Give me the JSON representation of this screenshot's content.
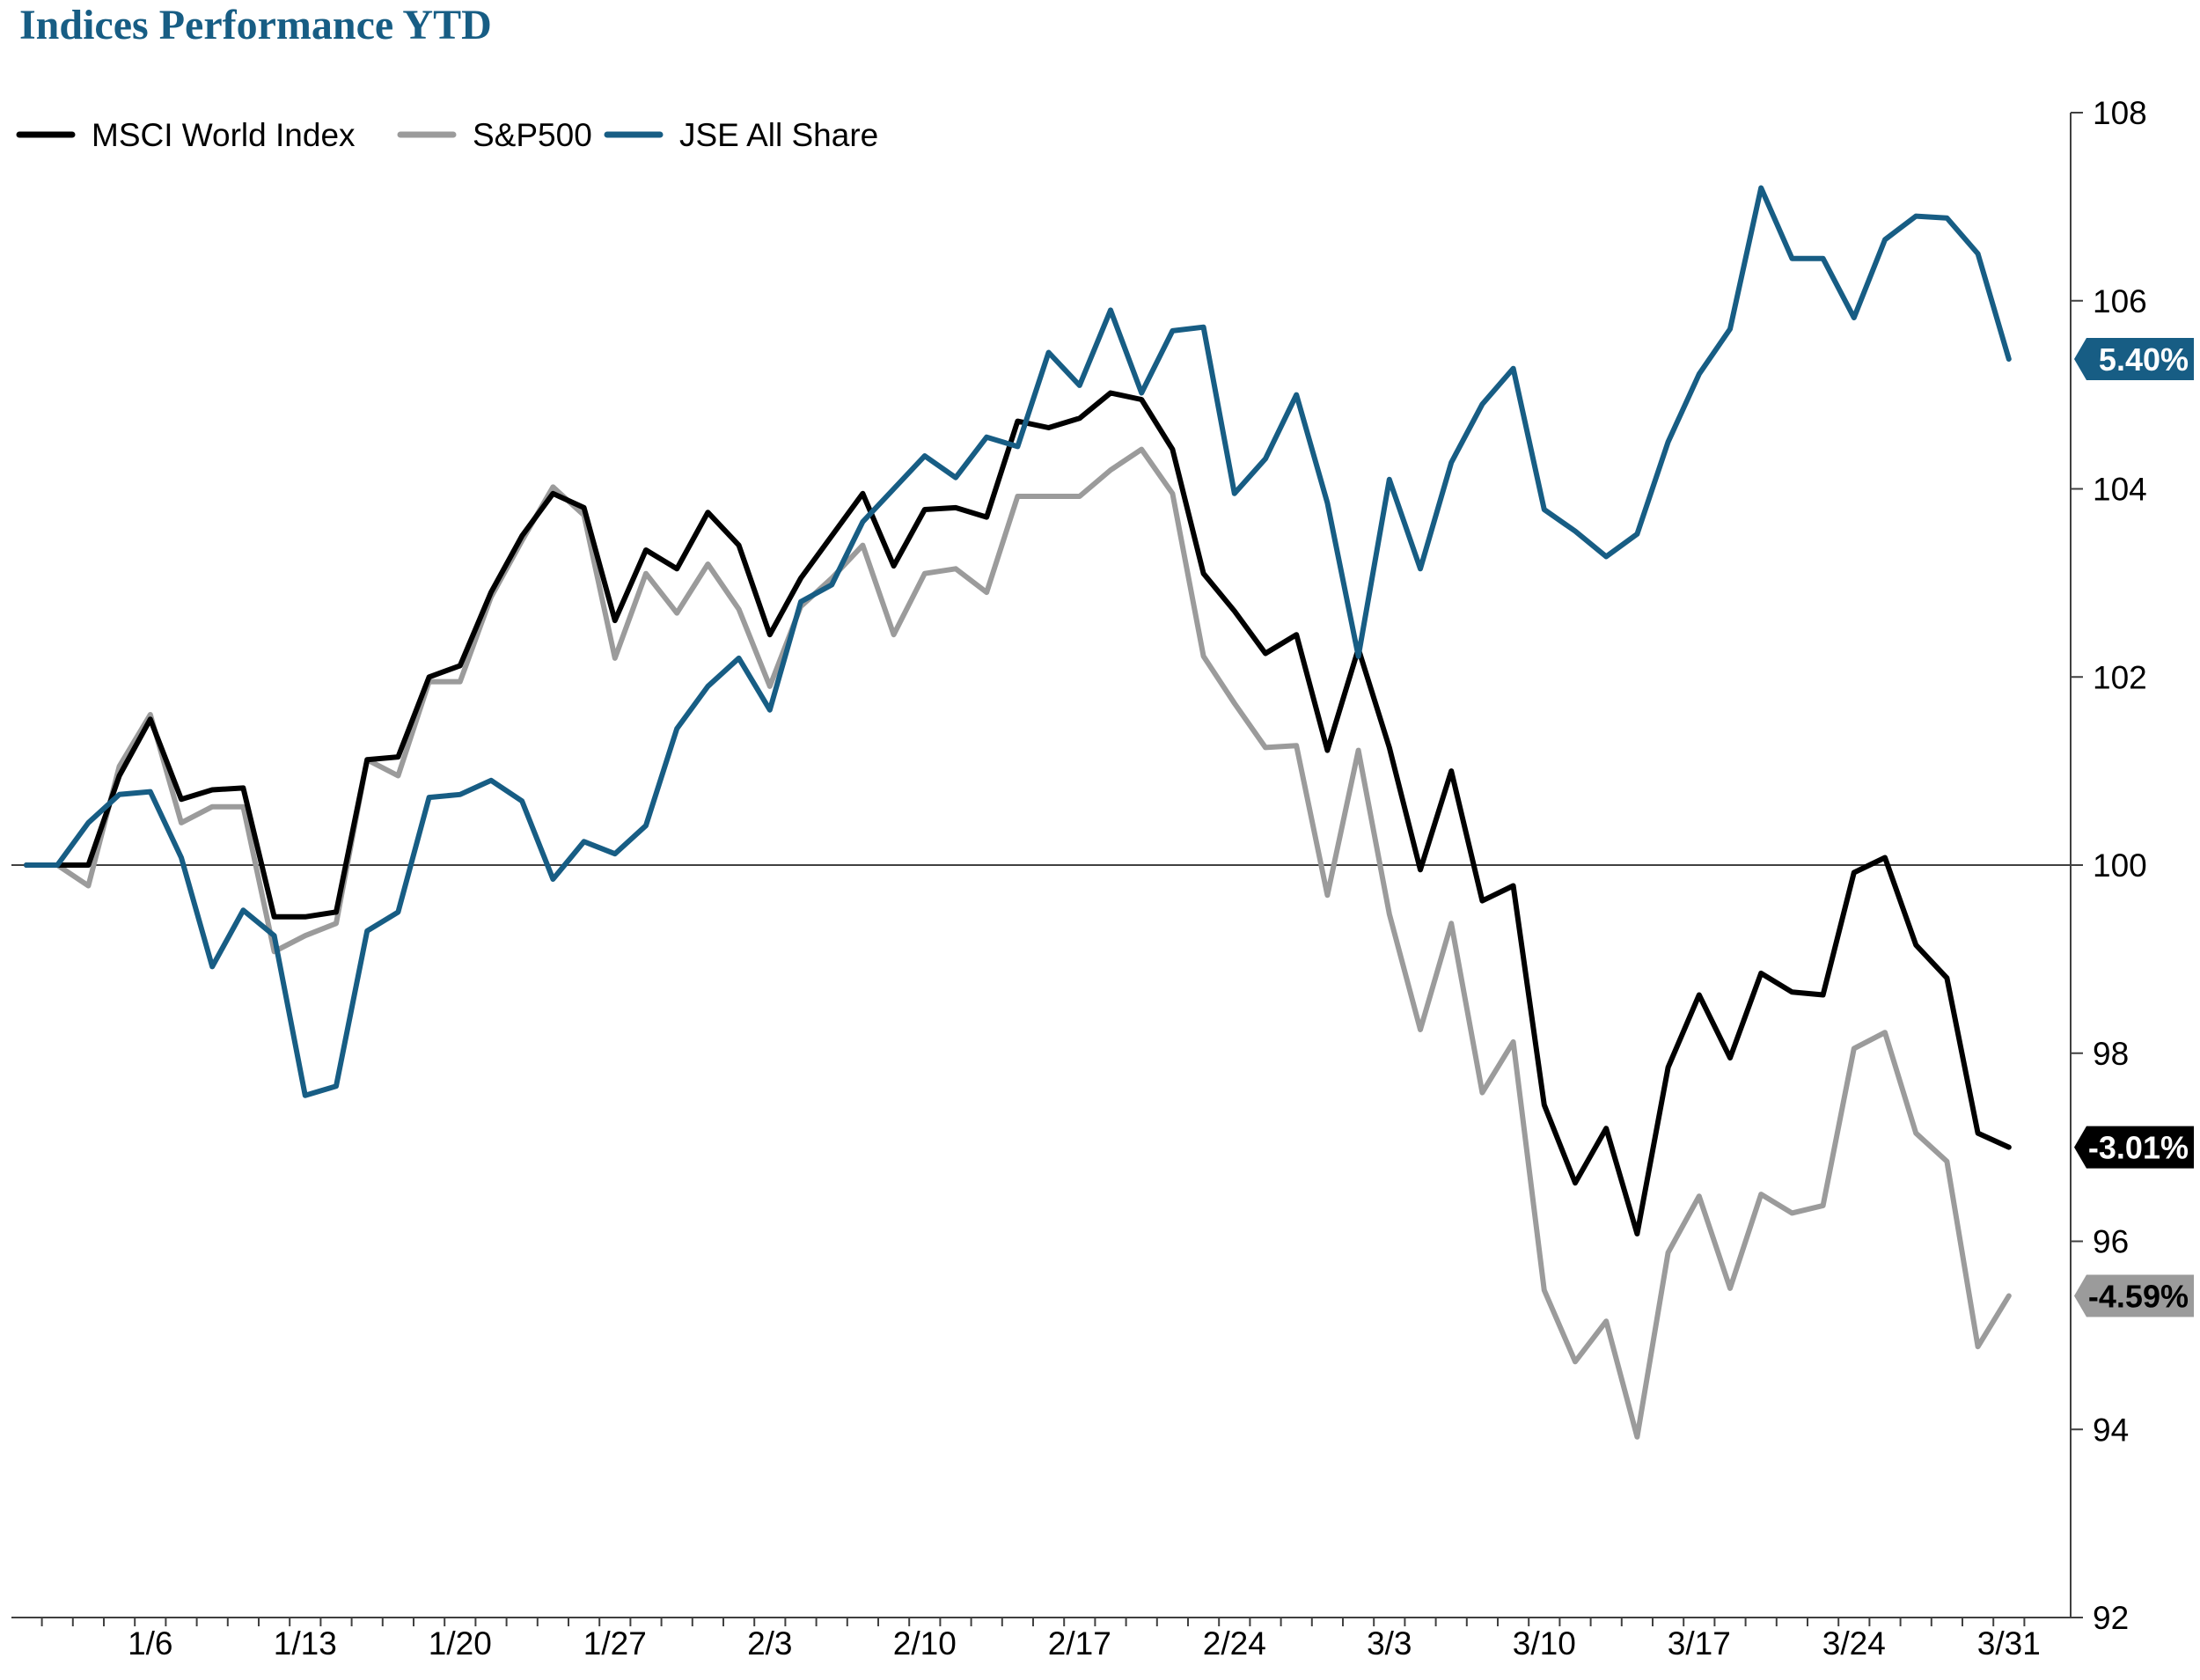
{
  "chart_data": {
    "type": "line",
    "title": "Indices Performance YTD",
    "title_color": "#175d84",
    "xlabel": "",
    "ylabel": "",
    "ylim": [
      92,
      108
    ],
    "y_ticks": [
      "92",
      "94",
      "96",
      "98",
      "100",
      "102",
      "104",
      "106",
      "108"
    ],
    "y_axis_position": "right",
    "reference_line": 100,
    "grid": false,
    "legend_position": "top-left",
    "x_tick_labels": [
      "1/6",
      "1/13",
      "1/20",
      "1/27",
      "2/3",
      "2/10",
      "2/17",
      "2/24",
      "3/3",
      "3/10",
      "3/17",
      "3/24",
      "3/31"
    ],
    "series": [
      {
        "name": "MSCI World Index",
        "color": "#000000",
        "end_label": "-3.01%",
        "end_label_text_color": "#ffffff",
        "values": [
          100,
          100,
          100,
          100.95,
          101.55,
          100.7,
          100.8,
          100.82,
          99.45,
          99.45,
          99.5,
          101.12,
          101.15,
          102,
          102.12,
          102.9,
          103.5,
          103.95,
          103.8,
          102.6,
          103.35,
          103.15,
          103.75,
          103.4,
          102.45,
          103.05,
          103.5,
          103.95,
          103.18,
          103.78,
          103.8,
          103.7,
          104.72,
          104.65,
          104.75,
          105.02,
          104.95,
          104.42,
          103.1,
          102.7,
          102.25,
          102.45,
          101.22,
          102.3,
          101.25,
          99.95,
          101,
          99.62,
          99.78,
          97.45,
          96.62,
          97.2,
          96.08,
          97.85,
          98.62,
          97.95,
          98.85,
          98.65,
          98.62,
          99.92,
          100.08,
          99.15,
          98.8,
          97.15,
          97.0
        ]
      },
      {
        "name": "S&P500",
        "color": "#9b9b9b",
        "end_label": "-4.59%",
        "end_label_text_color": "#000000",
        "values": [
          100,
          100,
          99.78,
          101.05,
          101.6,
          100.45,
          100.62,
          100.62,
          99.08,
          99.25,
          99.38,
          101.12,
          100.95,
          101.95,
          101.95,
          102.85,
          103.45,
          104.02,
          103.72,
          102.2,
          103.1,
          102.68,
          103.2,
          102.72,
          101.9,
          102.75,
          103.05,
          103.4,
          102.45,
          103.1,
          103.15,
          102.9,
          103.92,
          103.92,
          103.92,
          104.2,
          104.42,
          103.95,
          102.22,
          101.72,
          101.25,
          101.27,
          99.68,
          101.22,
          99.48,
          98.25,
          99.38,
          97.58,
          98.12,
          95.48,
          94.72,
          95.15,
          93.92,
          95.88,
          96.48,
          95.5,
          96.5,
          96.3,
          96.38,
          98.05,
          98.22,
          97.15,
          96.85,
          94.88,
          95.42
        ]
      },
      {
        "name": "JSE All Share",
        "color": "#175d84",
        "end_label": "5.40%",
        "end_label_text_color": "#ffffff",
        "values": [
          100,
          100,
          100.45,
          100.75,
          100.78,
          100.08,
          98.92,
          99.52,
          99.25,
          97.55,
          97.65,
          99.3,
          99.5,
          100.72,
          100.75,
          100.9,
          100.68,
          99.85,
          100.25,
          100.12,
          100.42,
          101.45,
          101.9,
          102.2,
          101.65,
          102.8,
          102.98,
          103.65,
          104.0,
          104.35,
          104.12,
          104.55,
          104.45,
          105.45,
          105.1,
          105.9,
          105.02,
          105.68,
          105.72,
          103.95,
          104.32,
          105.0,
          103.85,
          102.22,
          104.1,
          103.15,
          104.28,
          104.9,
          105.28,
          103.78,
          103.55,
          103.28,
          103.52,
          104.5,
          105.22,
          105.7,
          107.2,
          106.45,
          106.45,
          105.82,
          106.65,
          106.9,
          106.88,
          106.5,
          105.38
        ]
      }
    ]
  }
}
